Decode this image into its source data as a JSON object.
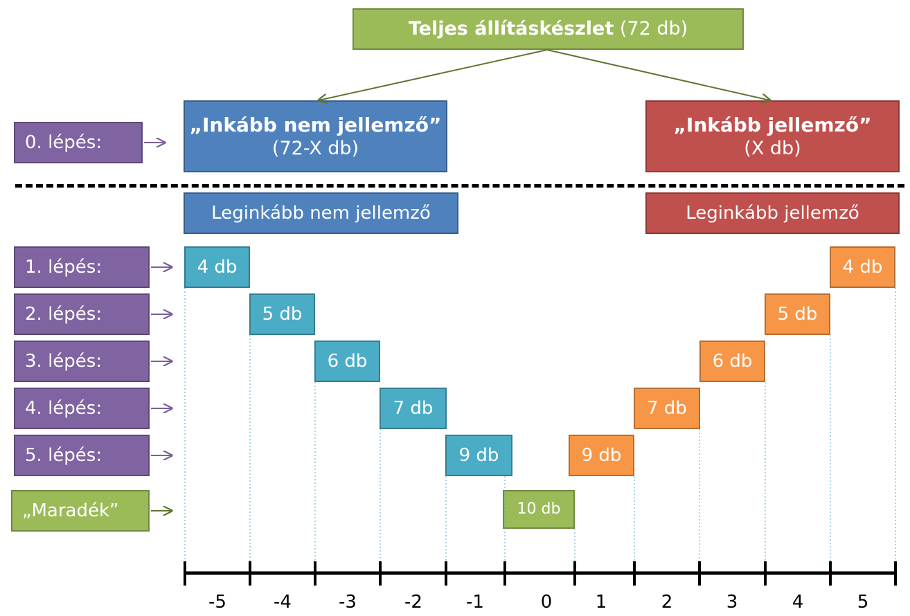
{
  "title": {
    "bold": "Teljes állításkészlet",
    "rest": "(72 db)"
  },
  "categories": {
    "not_typical": {
      "title": "„Inkább nem jellemző”",
      "count": "(72-X db)"
    },
    "typical": {
      "title": "„Inkább jellemző”",
      "count": "(X db)"
    }
  },
  "most": {
    "not_typical": "Leginkább nem jellemző",
    "typical": "Leginkább jellemző"
  },
  "steps": [
    "0. lépés:",
    "1. lépés:",
    "2. lépés:",
    "3. lépés:",
    "4. lépés:",
    "5. lépés:"
  ],
  "remainder_label": "„Maradék”",
  "left_counts": [
    "4 db",
    "5 db",
    "6 db",
    "7 db",
    "9 db"
  ],
  "right_counts": [
    "4 db",
    "5 db",
    "6 db",
    "7 db",
    "9 db"
  ],
  "remainder_count": "10 db",
  "scale": [
    "-5",
    "-4",
    "-3",
    "-2",
    "-1",
    "0",
    "1",
    "2",
    "3",
    "4",
    "5"
  ],
  "colors": {
    "total": "#9bbb59",
    "not_typical": "#4f81bd",
    "typical": "#c0504d",
    "step": "#8064a2",
    "left_count": "#4bacc6",
    "right_count": "#f79646",
    "remainder": "#9bbb59"
  }
}
